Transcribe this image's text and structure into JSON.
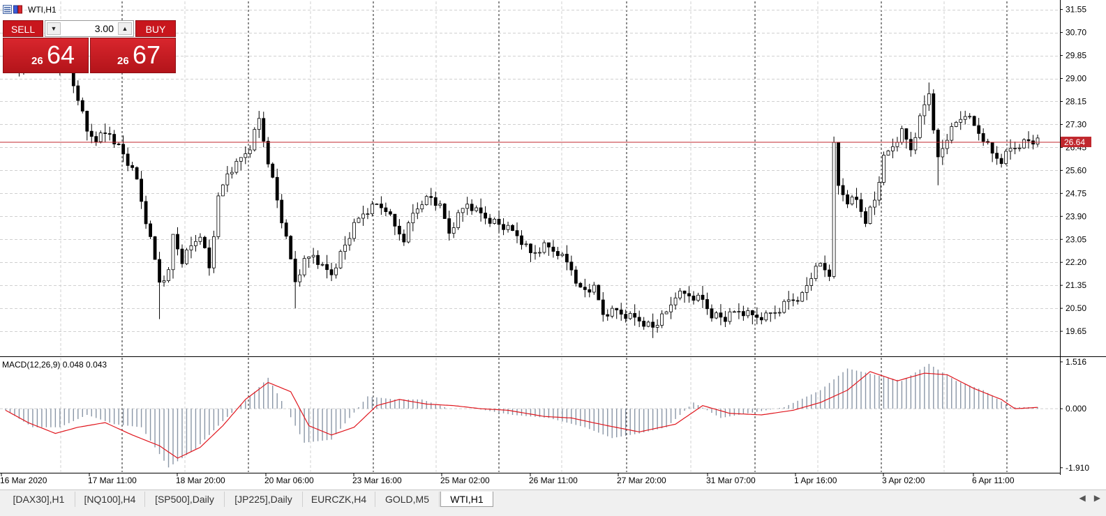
{
  "chart": {
    "symbol_title": "WTI,H1",
    "macd_label": "MACD(12,26,9) 0.048 0.043",
    "current_price_label": "26.64",
    "colors": {
      "background": "#ffffff",
      "grid": "#c0c0c0",
      "candle": "#000000",
      "price_line": "#c0272d",
      "signal": "#e0161d",
      "histogram": "#8a96a6",
      "price_label_bg": "#c0272d"
    }
  },
  "trade_panel": {
    "sell_label": "SELL",
    "buy_label": "BUY",
    "lot_value": "3.00",
    "sell_price_prefix": "26",
    "sell_price_main": "64",
    "buy_price_prefix": "26",
    "buy_price_main": "67"
  },
  "tabs": [
    {
      "label": "[DAX30],H1",
      "active": false
    },
    {
      "label": "[NQ100],H4",
      "active": false
    },
    {
      "label": "[SP500],Daily",
      "active": false
    },
    {
      "label": "[JP225],Daily",
      "active": false
    },
    {
      "label": "EURCZK,H4",
      "active": false
    },
    {
      "label": "GOLD,M5",
      "active": false
    },
    {
      "label": "WTI,H1",
      "active": true
    }
  ],
  "chart_data": [
    {
      "type": "candlestick",
      "symbol": "WTI",
      "timeframe": "H1",
      "y_ticks": [
        "31.55",
        "30.70",
        "29.85",
        "29.00",
        "28.15",
        "27.30",
        "26.45",
        "25.60",
        "24.75",
        "23.90",
        "23.05",
        "22.20",
        "21.35",
        "20.50",
        "19.65"
      ],
      "ylim": [
        18.75,
        31.85
      ],
      "x_labels": [
        "16 Mar 2020",
        "17 Mar 11:00",
        "18 Mar 20:00",
        "20 Mar 06:00",
        "23 Mar 16:00",
        "25 Mar 02:00",
        "26 Mar 11:00",
        "27 Mar 20:00",
        "31 Mar 07:00",
        "1 Apr 16:00",
        "3 Apr 02:00",
        "6 Apr 11:00"
      ],
      "current_price": 26.64,
      "grid": true,
      "close_path": [
        {
          "t": 0,
          "v": 30.0
        },
        {
          "t": 2,
          "v": 29.3
        },
        {
          "t": 5,
          "v": 29.5
        },
        {
          "t": 8,
          "v": 29.5
        },
        {
          "t": 11,
          "v": 29.5
        },
        {
          "t": 14,
          "v": 29.2
        },
        {
          "t": 16,
          "v": 28.3
        },
        {
          "t": 18,
          "v": 27.0
        },
        {
          "t": 20,
          "v": 26.8
        },
        {
          "t": 23,
          "v": 27.0
        },
        {
          "t": 26,
          "v": 26.2
        },
        {
          "t": 29,
          "v": 25.2
        },
        {
          "t": 32,
          "v": 23.0
        },
        {
          "t": 34,
          "v": 21.5
        },
        {
          "t": 36,
          "v": 21.8
        },
        {
          "t": 37,
          "v": 23.2
        },
        {
          "t": 39,
          "v": 22.3
        },
        {
          "t": 41,
          "v": 22.8
        },
        {
          "t": 43,
          "v": 23.3
        },
        {
          "t": 45,
          "v": 22.0
        },
        {
          "t": 47,
          "v": 24.5
        },
        {
          "t": 49,
          "v": 25.5
        },
        {
          "t": 51,
          "v": 25.8
        },
        {
          "t": 54,
          "v": 26.5
        },
        {
          "t": 56,
          "v": 27.5
        },
        {
          "t": 58,
          "v": 26.0
        },
        {
          "t": 60,
          "v": 24.5
        },
        {
          "t": 62,
          "v": 23.0
        },
        {
          "t": 64,
          "v": 21.5
        },
        {
          "t": 66,
          "v": 22.2
        },
        {
          "t": 68,
          "v": 22.5
        },
        {
          "t": 70,
          "v": 22.0
        },
        {
          "t": 72,
          "v": 21.8
        },
        {
          "t": 74,
          "v": 22.5
        },
        {
          "t": 77,
          "v": 23.5
        },
        {
          "t": 79,
          "v": 24.0
        },
        {
          "t": 82,
          "v": 24.3
        },
        {
          "t": 84,
          "v": 24.2
        },
        {
          "t": 86,
          "v": 23.5
        },
        {
          "t": 88,
          "v": 23.1
        },
        {
          "t": 90,
          "v": 24.0
        },
        {
          "t": 92,
          "v": 24.5
        },
        {
          "t": 94,
          "v": 24.6
        },
        {
          "t": 96,
          "v": 24.2
        },
        {
          "t": 98,
          "v": 23.3
        },
        {
          "t": 100,
          "v": 23.9
        },
        {
          "t": 102,
          "v": 24.4
        },
        {
          "t": 104,
          "v": 24.1
        },
        {
          "t": 107,
          "v": 23.8
        },
        {
          "t": 110,
          "v": 23.5
        },
        {
          "t": 113,
          "v": 23.2
        },
        {
          "t": 116,
          "v": 22.5
        },
        {
          "t": 119,
          "v": 22.8
        },
        {
          "t": 122,
          "v": 22.6
        },
        {
          "t": 125,
          "v": 22.0
        },
        {
          "t": 127,
          "v": 21.2
        },
        {
          "t": 130,
          "v": 21.2
        },
        {
          "t": 132,
          "v": 20.3
        },
        {
          "t": 135,
          "v": 20.4
        },
        {
          "t": 138,
          "v": 20.2
        },
        {
          "t": 140,
          "v": 20.1
        },
        {
          "t": 143,
          "v": 19.8
        },
        {
          "t": 146,
          "v": 20.3
        },
        {
          "t": 148,
          "v": 21.0
        },
        {
          "t": 151,
          "v": 21.0
        },
        {
          "t": 154,
          "v": 20.8
        },
        {
          "t": 156,
          "v": 20.3
        },
        {
          "t": 159,
          "v": 20.1
        },
        {
          "t": 162,
          "v": 20.4
        },
        {
          "t": 165,
          "v": 20.2
        },
        {
          "t": 168,
          "v": 20.2
        },
        {
          "t": 171,
          "v": 20.5
        },
        {
          "t": 173,
          "v": 20.8
        },
        {
          "t": 176,
          "v": 21.0
        },
        {
          "t": 178,
          "v": 21.7
        },
        {
          "t": 180,
          "v": 22.1
        },
        {
          "t": 182,
          "v": 21.8
        },
        {
          "t": 183,
          "v": 26.5
        },
        {
          "t": 184,
          "v": 25.0
        },
        {
          "t": 186,
          "v": 24.5
        },
        {
          "t": 188,
          "v": 24.5
        },
        {
          "t": 190,
          "v": 23.8
        },
        {
          "t": 192,
          "v": 24.5
        },
        {
          "t": 194,
          "v": 26.0
        },
        {
          "t": 196,
          "v": 26.5
        },
        {
          "t": 198,
          "v": 27.0
        },
        {
          "t": 200,
          "v": 26.4
        },
        {
          "t": 202,
          "v": 27.5
        },
        {
          "t": 204,
          "v": 28.5
        },
        {
          "t": 206,
          "v": 26.0
        },
        {
          "t": 208,
          "v": 26.8
        },
        {
          "t": 210,
          "v": 27.3
        },
        {
          "t": 212,
          "v": 27.7
        },
        {
          "t": 214,
          "v": 27.2
        },
        {
          "t": 216,
          "v": 26.8
        },
        {
          "t": 218,
          "v": 26.2
        },
        {
          "t": 220,
          "v": 26.0
        },
        {
          "t": 222,
          "v": 26.4
        },
        {
          "t": 224,
          "v": 26.6
        },
        {
          "t": 226,
          "v": 26.7
        },
        {
          "t": 228,
          "v": 26.64
        }
      ],
      "notable_extremes": [
        {
          "t": 34,
          "type": "low",
          "v": 20.1
        },
        {
          "t": 56,
          "type": "high",
          "v": 27.8
        },
        {
          "t": 64,
          "type": "low",
          "v": 20.5
        },
        {
          "t": 143,
          "type": "low",
          "v": 19.4
        },
        {
          "t": 183,
          "type": "high",
          "v": 26.85
        },
        {
          "t": 204,
          "type": "high",
          "v": 28.85
        },
        {
          "t": 206,
          "type": "low",
          "v": 25.05
        }
      ]
    },
    {
      "type": "macd",
      "title": "MACD(12,26,9) 0.048 0.043",
      "y_ticks": [
        "1.516",
        "0.000",
        "-1.910"
      ],
      "ylim": [
        -2.05,
        1.65
      ],
      "zero_line": true,
      "main_values": [
        {
          "t": 0,
          "v": -0.05
        },
        {
          "t": 6,
          "v": -0.6
        },
        {
          "t": 12,
          "v": -0.6
        },
        {
          "t": 18,
          "v": -0.2
        },
        {
          "t": 24,
          "v": -0.5
        },
        {
          "t": 30,
          "v": -0.6
        },
        {
          "t": 36,
          "v": -1.9
        },
        {
          "t": 42,
          "v": -1.3
        },
        {
          "t": 48,
          "v": -0.4
        },
        {
          "t": 54,
          "v": 0.4
        },
        {
          "t": 58,
          "v": 1.0
        },
        {
          "t": 62,
          "v": 0.0
        },
        {
          "t": 66,
          "v": -1.1
        },
        {
          "t": 72,
          "v": -1.0
        },
        {
          "t": 80,
          "v": 0.4
        },
        {
          "t": 86,
          "v": 0.3
        },
        {
          "t": 92,
          "v": 0.3
        },
        {
          "t": 98,
          "v": 0.0
        },
        {
          "t": 104,
          "v": 0.0
        },
        {
          "t": 112,
          "v": -0.2
        },
        {
          "t": 120,
          "v": -0.3
        },
        {
          "t": 128,
          "v": -0.6
        },
        {
          "t": 134,
          "v": -0.95
        },
        {
          "t": 140,
          "v": -0.8
        },
        {
          "t": 146,
          "v": -0.6
        },
        {
          "t": 152,
          "v": 0.2
        },
        {
          "t": 158,
          "v": -0.3
        },
        {
          "t": 164,
          "v": -0.15
        },
        {
          "t": 172,
          "v": 0.05
        },
        {
          "t": 180,
          "v": 0.6
        },
        {
          "t": 186,
          "v": 1.3
        },
        {
          "t": 192,
          "v": 1.1
        },
        {
          "t": 198,
          "v": 0.9
        },
        {
          "t": 204,
          "v": 1.45
        },
        {
          "t": 210,
          "v": 0.9
        },
        {
          "t": 216,
          "v": 0.6
        },
        {
          "t": 222,
          "v": 0.05
        },
        {
          "t": 228,
          "v": 0.048
        }
      ],
      "signal_values": [
        {
          "t": 0,
          "v": -0.05
        },
        {
          "t": 5,
          "v": -0.45
        },
        {
          "t": 11,
          "v": -0.8
        },
        {
          "t": 16,
          "v": -0.6
        },
        {
          "t": 22,
          "v": -0.45
        },
        {
          "t": 28,
          "v": -0.85
        },
        {
          "t": 34,
          "v": -1.2
        },
        {
          "t": 38,
          "v": -1.6
        },
        {
          "t": 43,
          "v": -1.25
        },
        {
          "t": 48,
          "v": -0.55
        },
        {
          "t": 53,
          "v": 0.3
        },
        {
          "t": 58,
          "v": 0.85
        },
        {
          "t": 63,
          "v": 0.55
        },
        {
          "t": 67,
          "v": -0.55
        },
        {
          "t": 72,
          "v": -0.85
        },
        {
          "t": 77,
          "v": -0.6
        },
        {
          "t": 82,
          "v": 0.1
        },
        {
          "t": 87,
          "v": 0.3
        },
        {
          "t": 93,
          "v": 0.15
        },
        {
          "t": 99,
          "v": 0.1
        },
        {
          "t": 105,
          "v": 0.0
        },
        {
          "t": 111,
          "v": -0.05
        },
        {
          "t": 119,
          "v": -0.25
        },
        {
          "t": 125,
          "v": -0.3
        },
        {
          "t": 133,
          "v": -0.55
        },
        {
          "t": 140,
          "v": -0.75
        },
        {
          "t": 148,
          "v": -0.5
        },
        {
          "t": 154,
          "v": 0.1
        },
        {
          "t": 160,
          "v": -0.15
        },
        {
          "t": 167,
          "v": -0.2
        },
        {
          "t": 174,
          "v": -0.05
        },
        {
          "t": 180,
          "v": 0.2
        },
        {
          "t": 186,
          "v": 0.6
        },
        {
          "t": 191,
          "v": 1.2
        },
        {
          "t": 197,
          "v": 0.9
        },
        {
          "t": 203,
          "v": 1.15
        },
        {
          "t": 208,
          "v": 1.1
        },
        {
          "t": 214,
          "v": 0.65
        },
        {
          "t": 220,
          "v": 0.3
        },
        {
          "t": 223,
          "v": 0.0
        },
        {
          "t": 228,
          "v": 0.043
        }
      ]
    }
  ]
}
